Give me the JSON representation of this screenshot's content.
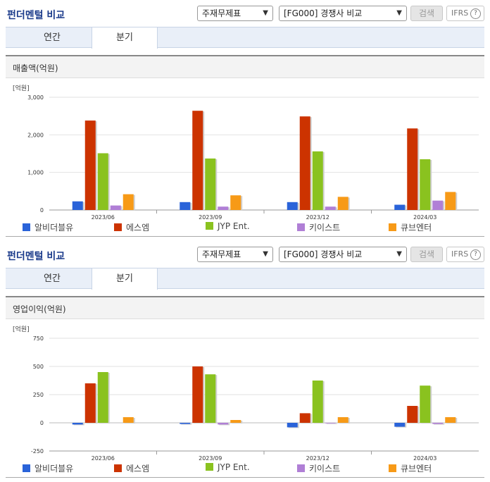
{
  "panels": [
    {
      "title": "펀더멘털 비교",
      "select1": "주재무제표",
      "select2": "[FG000] 경쟁사 비교",
      "search_label": "검색",
      "ifrs_label": "IFRS",
      "help_glyph": "?",
      "tabs": [
        "연간",
        "분기"
      ],
      "active_tab": "분기",
      "chart_title": "매출액(억원)",
      "legend_colors": [
        "#2a63d9",
        "#cc3300",
        "#8ac21f",
        "#b07fd6",
        "#f79a17"
      ]
    },
    {
      "title": "펀더멘털 비교",
      "select1": "주재무제표",
      "select2": "[FG000] 경쟁사 비교",
      "search_label": "검색",
      "ifrs_label": "IFRS",
      "help_glyph": "?",
      "tabs": [
        "연간",
        "분기"
      ],
      "active_tab": "분기",
      "chart_title": "영업이익(억원)",
      "legend_colors": [
        "#2a63d9",
        "#cc3300",
        "#8ac21f",
        "#b07fd6",
        "#f79a17"
      ]
    }
  ],
  "chart_data": [
    {
      "type": "bar",
      "title": "매출액(억원)",
      "unit_label": "[억원]",
      "categories": [
        "2023/06",
        "2023/09",
        "2023/12",
        "2024/03"
      ],
      "ylim": [
        0,
        3000
      ],
      "yticks": [
        0,
        1000,
        2000,
        3000
      ],
      "ytick_labels": [
        "0",
        "1,000",
        "2,000",
        "3,000"
      ],
      "grid": true,
      "legend": "bottom",
      "series": [
        {
          "name": "알비더블유",
          "color": "#2a63d9",
          "values": [
            230,
            210,
            210,
            140
          ]
        },
        {
          "name": "에스엠",
          "color": "#cc3300",
          "values": [
            2380,
            2640,
            2490,
            2170
          ]
        },
        {
          "name": "JYP Ent.",
          "color": "#8ac21f",
          "values": [
            1510,
            1370,
            1560,
            1350
          ]
        },
        {
          "name": "키이스트",
          "color": "#b07fd6",
          "values": [
            120,
            90,
            90,
            250
          ]
        },
        {
          "name": "큐브엔터",
          "color": "#f79a17",
          "values": [
            420,
            390,
            350,
            480
          ]
        }
      ]
    },
    {
      "type": "bar",
      "title": "영업이익(억원)",
      "unit_label": "[억원]",
      "categories": [
        "2023/06",
        "2023/09",
        "2023/12",
        "2024/03"
      ],
      "ylim": [
        -250,
        750
      ],
      "yticks": [
        -250,
        0,
        250,
        500,
        750
      ],
      "ytick_labels": [
        "-250",
        "0",
        "250",
        "500",
        "750"
      ],
      "grid": true,
      "legend": "bottom",
      "series": [
        {
          "name": "알비더블유",
          "color": "#2a63d9",
          "values": [
            -15,
            -10,
            -40,
            -35
          ]
        },
        {
          "name": "에스엠",
          "color": "#cc3300",
          "values": [
            350,
            500,
            85,
            150
          ]
        },
        {
          "name": "JYP Ent.",
          "color": "#8ac21f",
          "values": [
            450,
            430,
            375,
            330
          ]
        },
        {
          "name": "키이스트",
          "color": "#b07fd6",
          "values": [
            0,
            -15,
            -5,
            -10
          ]
        },
        {
          "name": "큐브엔터",
          "color": "#f79a17",
          "values": [
            50,
            25,
            50,
            50
          ]
        }
      ]
    }
  ]
}
